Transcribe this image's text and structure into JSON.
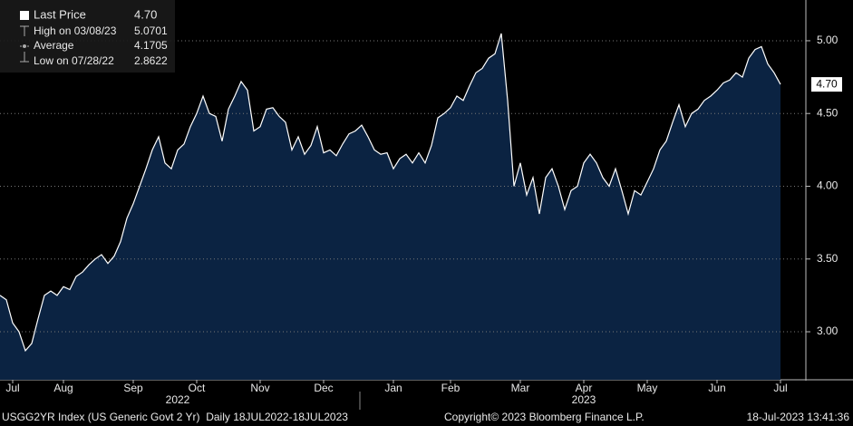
{
  "chart_data": {
    "type": "area",
    "color": "#ffffff",
    "fill": "#0b2342",
    "grid": true,
    "values": [
      3.25,
      3.22,
      3.06,
      3.0,
      2.87,
      2.92,
      3.09,
      3.25,
      3.28,
      3.25,
      3.31,
      3.29,
      3.38,
      3.41,
      3.46,
      3.5,
      3.53,
      3.47,
      3.52,
      3.62,
      3.78,
      3.88,
      4.0,
      4.12,
      4.25,
      4.34,
      4.16,
      4.12,
      4.25,
      4.29,
      4.41,
      4.5,
      4.62,
      4.5,
      4.48,
      4.31,
      4.53,
      4.62,
      4.72,
      4.66,
      4.38,
      4.41,
      4.53,
      4.54,
      4.48,
      4.44,
      4.25,
      4.34,
      4.22,
      4.28,
      4.41,
      4.23,
      4.25,
      4.21,
      4.29,
      4.36,
      4.38,
      4.42,
      4.34,
      4.25,
      4.22,
      4.23,
      4.12,
      4.19,
      4.22,
      4.16,
      4.23,
      4.16,
      4.28,
      4.47,
      4.5,
      4.54,
      4.62,
      4.59,
      4.69,
      4.78,
      4.81,
      4.88,
      4.91,
      5.05,
      4.59,
      4.0,
      4.16,
      3.94,
      4.06,
      3.81,
      4.06,
      4.12,
      4.0,
      3.84,
      3.97,
      4.0,
      4.16,
      4.22,
      4.16,
      4.06,
      4.0,
      4.12,
      3.97,
      3.81,
      3.97,
      3.94,
      4.03,
      4.12,
      4.25,
      4.31,
      4.44,
      4.56,
      4.41,
      4.5,
      4.53,
      4.59,
      4.62,
      4.66,
      4.71,
      4.73,
      4.78,
      4.75,
      4.88,
      4.94,
      4.96,
      4.84,
      4.78,
      4.7
    ],
    "xlim": [
      0,
      127
    ],
    "xticks": [
      {
        "value": 2,
        "label": "Jul"
      },
      {
        "value": 10,
        "label": "Aug"
      },
      {
        "value": 21,
        "label": "Sep"
      },
      {
        "value": 31,
        "label": "Oct"
      },
      {
        "value": 41,
        "label": "Nov"
      },
      {
        "value": 51,
        "label": "Dec"
      },
      {
        "value": 62,
        "label": "Jan"
      },
      {
        "value": 71,
        "label": "Feb"
      },
      {
        "value": 82,
        "label": "Mar"
      },
      {
        "value": 92,
        "label": "Apr"
      },
      {
        "value": 102,
        "label": "May"
      },
      {
        "value": 113,
        "label": "Jun"
      },
      {
        "value": 123,
        "label": "Jul"
      }
    ],
    "year_labels": [
      {
        "value": 28,
        "label": "2022"
      },
      {
        "value": 92,
        "label": "2023"
      }
    ],
    "ylim": [
      2.67,
      5.28
    ],
    "yticks": [
      {
        "value": 3.0,
        "label": "3.00"
      },
      {
        "value": 3.5,
        "label": "3.50"
      },
      {
        "value": 4.0,
        "label": "4.00"
      },
      {
        "value": 4.5,
        "label": "4.50"
      },
      {
        "value": 5.0,
        "label": "5.00"
      }
    ],
    "last_label": "4.70",
    "legend_entries": [
      {
        "name": "Last Price",
        "value": "4.70"
      },
      {
        "name": "High on 03/08/23",
        "value": "5.0701"
      },
      {
        "name": "Average",
        "value": "4.1705"
      },
      {
        "name": "Low on 07/28/22",
        "value": "2.8622"
      }
    ],
    "footer_left": "USGG2YR Index (US Generic Govt 2 Yr)  Daily 18JUL2022-18JUL2023",
    "footer_right": "Copyright© 2023 Bloomberg Finance L.P.",
    "timestamp": "18-Jul-2023 13:41:36"
  }
}
